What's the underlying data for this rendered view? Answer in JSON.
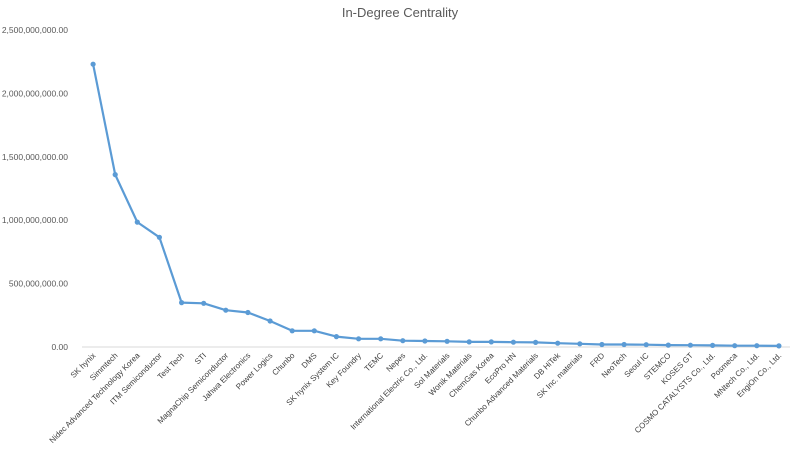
{
  "chart_data": {
    "type": "line",
    "title": "In-Degree Centrality",
    "xlabel": "",
    "ylabel": "",
    "ylim": [
      0,
      2500000000
    ],
    "yticks": [
      0,
      500000000,
      1000000000,
      1500000000,
      2000000000,
      2500000000
    ],
    "ytick_labels": [
      "0.00",
      "500,000,000.00",
      "1,000,000,000.00",
      "1,500,000,000.00",
      "2,000,000,000.00",
      "2,500,000,000.00"
    ],
    "grid": false,
    "color": "#5b9bd5",
    "categories": [
      "SK hynix",
      "Simmtech",
      "Nidec Advanced Technology Korea",
      "ITM Semiconductor",
      "Test Tech",
      "STI",
      "MagnaChip Semiconductor",
      "Jahwa Electronics",
      "Power Logics",
      "Chunbo",
      "DMS",
      "SK hynix System IC",
      "Key Foundry",
      "TEMC",
      "Nepes",
      "International Electric Co., Ltd.",
      "Sol Materials",
      "Wonik Materials",
      "ChemGas Korea",
      "EcoPro HN",
      "Chunbo Advanced Materials",
      "DB HiTek",
      "SK Inc. materials",
      "FRD",
      "NeoTech",
      "Seoul IC",
      "STEMCO",
      "KOSES GT",
      "COSMO CATALYSTS Co., Ltd.",
      "Posmeca",
      "MNtech Co., Ltd.",
      "EngiOn Co., Ltd."
    ],
    "values": [
      2230000000,
      1360000000,
      985000000,
      865000000,
      350000000,
      345000000,
      290000000,
      272000000,
      205000000,
      128000000,
      128000000,
      82000000,
      65000000,
      65000000,
      50000000,
      47000000,
      45000000,
      40000000,
      40000000,
      38000000,
      36000000,
      30000000,
      25000000,
      20000000,
      20000000,
      18000000,
      15000000,
      14000000,
      13000000,
      10000000,
      10000000,
      9000000
    ]
  }
}
